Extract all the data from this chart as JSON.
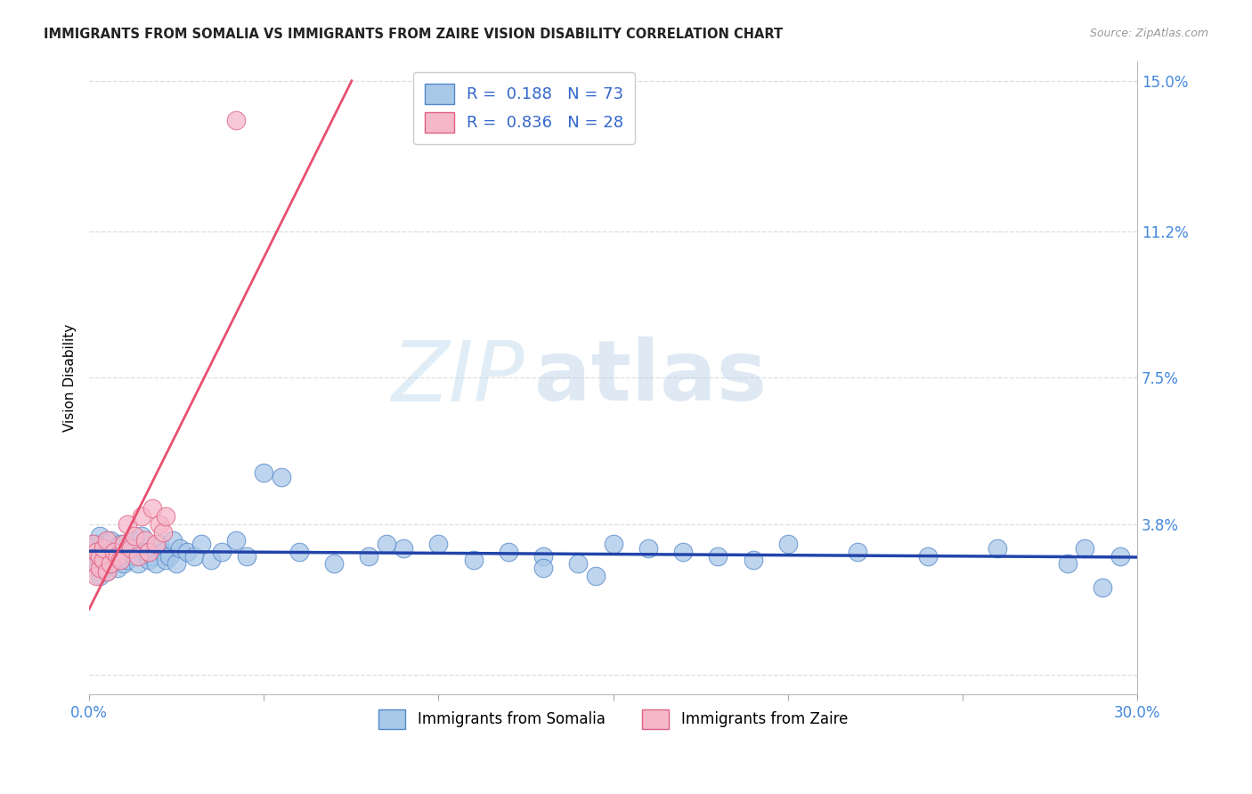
{
  "title": "IMMIGRANTS FROM SOMALIA VS IMMIGRANTS FROM ZAIRE VISION DISABILITY CORRELATION CHART",
  "source": "Source: ZipAtlas.com",
  "ylabel": "Vision Disability",
  "xlim": [
    0.0,
    0.3
  ],
  "ylim": [
    -0.005,
    0.155
  ],
  "xtick_positions": [
    0.0,
    0.05,
    0.1,
    0.15,
    0.2,
    0.25,
    0.3
  ],
  "xticklabels": [
    "0.0%",
    "",
    "",
    "",
    "",
    "",
    "30.0%"
  ],
  "ytick_positions": [
    0.0,
    0.038,
    0.075,
    0.112,
    0.15
  ],
  "yticklabels": [
    "",
    "3.8%",
    "7.5%",
    "11.2%",
    "15.0%"
  ],
  "somalia_color": "#a8c8e8",
  "somalia_edge": "#5588cc",
  "zaire_color": "#f5b8cb",
  "zaire_edge": "#e06080",
  "somalia_line_color": "#2244aa",
  "zaire_line_color": "#e85070",
  "R_somalia": 0.188,
  "N_somalia": 73,
  "R_zaire": 0.836,
  "N_zaire": 28,
  "watermark_zip": "ZIP",
  "watermark_atlas": "atlas",
  "legend_label_somalia": "Immigrants from Somalia",
  "legend_label_zaire": "Immigrants from Zaire",
  "grid_color": "#dddddd",
  "title_color": "#222222",
  "source_color": "#999999",
  "tick_color": "#4488dd",
  "somalia_x": [
    0.001,
    0.002,
    0.002,
    0.003,
    0.003,
    0.003,
    0.004,
    0.004,
    0.004,
    0.005,
    0.005,
    0.005,
    0.006,
    0.006,
    0.007,
    0.007,
    0.008,
    0.008,
    0.009,
    0.009,
    0.01,
    0.01,
    0.011,
    0.012,
    0.013,
    0.014,
    0.015,
    0.015,
    0.016,
    0.017,
    0.018,
    0.019,
    0.02,
    0.021,
    0.022,
    0.023,
    0.024,
    0.025,
    0.026,
    0.028,
    0.03,
    0.032,
    0.035,
    0.038,
    0.042,
    0.045,
    0.05,
    0.055,
    0.06,
    0.07,
    0.08,
    0.09,
    0.1,
    0.11,
    0.12,
    0.13,
    0.14,
    0.15,
    0.16,
    0.17,
    0.18,
    0.19,
    0.2,
    0.22,
    0.24,
    0.26,
    0.28,
    0.285,
    0.29,
    0.295,
    0.13,
    0.145,
    0.085
  ],
  "somalia_y": [
    0.03,
    0.028,
    0.033,
    0.025,
    0.031,
    0.035,
    0.027,
    0.032,
    0.029,
    0.026,
    0.033,
    0.03,
    0.028,
    0.034,
    0.031,
    0.029,
    0.032,
    0.027,
    0.03,
    0.033,
    0.028,
    0.031,
    0.029,
    0.034,
    0.03,
    0.028,
    0.032,
    0.035,
    0.031,
    0.029,
    0.03,
    0.028,
    0.033,
    0.031,
    0.029,
    0.03,
    0.034,
    0.028,
    0.032,
    0.031,
    0.03,
    0.033,
    0.029,
    0.031,
    0.034,
    0.03,
    0.051,
    0.05,
    0.031,
    0.028,
    0.03,
    0.032,
    0.033,
    0.029,
    0.031,
    0.03,
    0.028,
    0.033,
    0.032,
    0.031,
    0.03,
    0.029,
    0.033,
    0.031,
    0.03,
    0.032,
    0.028,
    0.032,
    0.022,
    0.03,
    0.027,
    0.025,
    0.033
  ],
  "zaire_x": [
    0.001,
    0.001,
    0.002,
    0.002,
    0.003,
    0.003,
    0.004,
    0.004,
    0.005,
    0.005,
    0.006,
    0.007,
    0.008,
    0.009,
    0.01,
    0.011,
    0.012,
    0.013,
    0.014,
    0.015,
    0.016,
    0.017,
    0.018,
    0.019,
    0.02,
    0.021,
    0.022,
    0.042
  ],
  "zaire_y": [
    0.028,
    0.033,
    0.025,
    0.031,
    0.027,
    0.03,
    0.029,
    0.032,
    0.026,
    0.034,
    0.028,
    0.031,
    0.03,
    0.029,
    0.033,
    0.038,
    0.032,
    0.035,
    0.03,
    0.04,
    0.034,
    0.031,
    0.042,
    0.033,
    0.038,
    0.036,
    0.04,
    0.14
  ]
}
